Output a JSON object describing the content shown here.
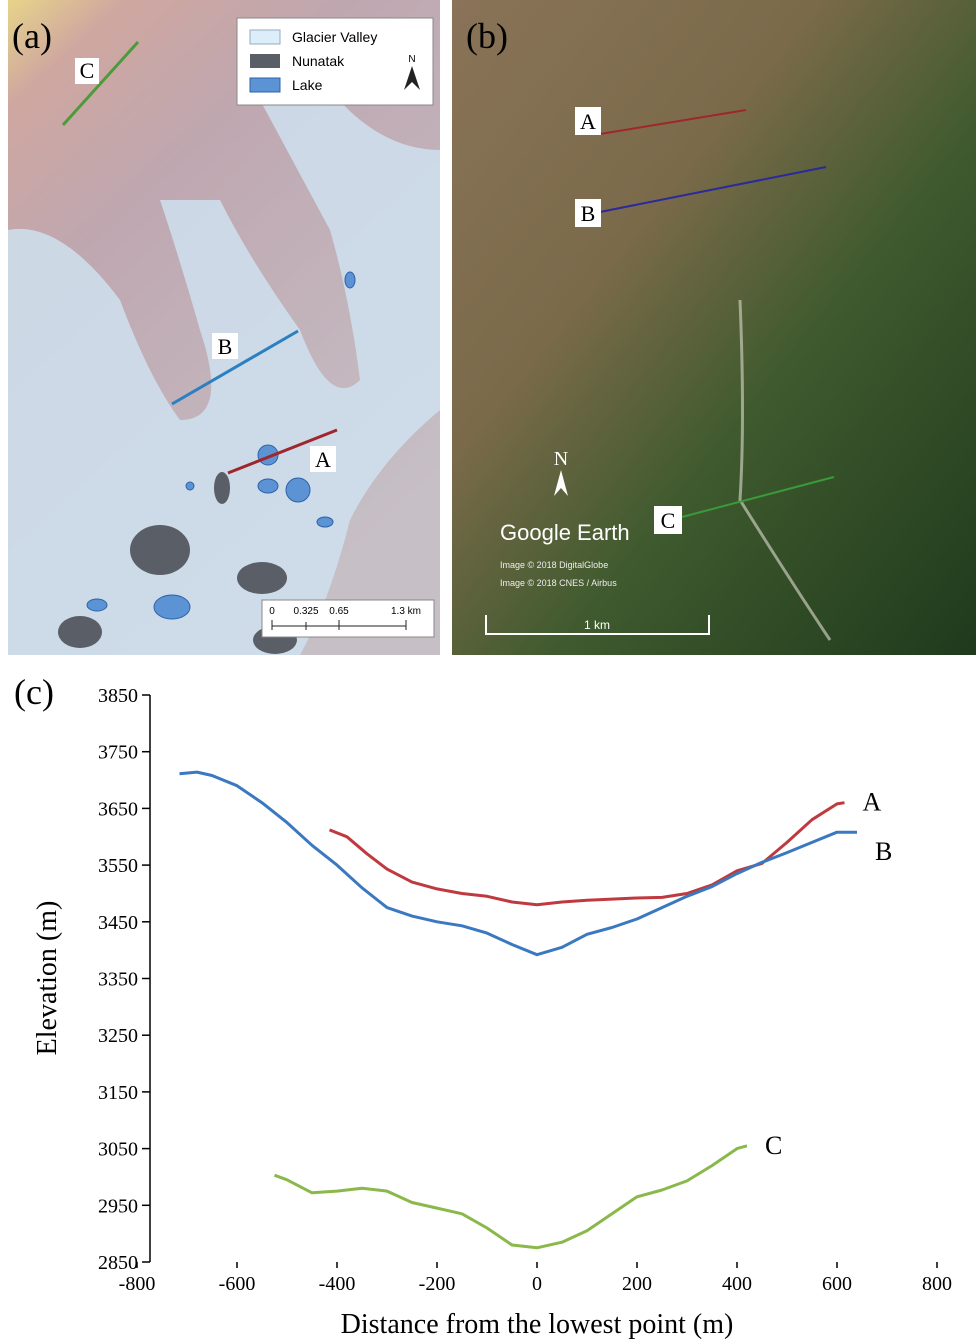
{
  "panel_a": {
    "label": "(a)",
    "legend": [
      "Glacier Valley",
      "Nunatak",
      "Lake"
    ],
    "north": "N",
    "profiles": [
      "A",
      "B",
      "C"
    ],
    "scale": [
      "0",
      "0.325",
      "0.65",
      "1.3 km"
    ]
  },
  "panel_b": {
    "label": "(b)",
    "profiles": [
      "A",
      "B",
      "C"
    ],
    "north": "N",
    "brand": "Google Earth",
    "credits": [
      "Image © 2018 DigitalGlobe",
      "Image © 2018 CNES / Airbus"
    ],
    "scale": "1 km"
  },
  "chart_data": {
    "type": "line",
    "panel_label": "(c)",
    "x_label": "Distance from the lowest point (m)",
    "y_label": "Elevation (m)",
    "xlim": [
      -800,
      800
    ],
    "xticks": [
      -800,
      -600,
      -400,
      -200,
      0,
      200,
      400,
      600,
      800
    ],
    "ylim": [
      2850,
      3850
    ],
    "yticks": [
      2850,
      2950,
      3050,
      3150,
      3250,
      3350,
      3450,
      3550,
      3650,
      3750,
      3850
    ],
    "series": [
      {
        "name": "A",
        "color": "#c0393f",
        "x": [
          -415,
          -380,
          -340,
          -300,
          -250,
          -200,
          -150,
          -100,
          -50,
          0,
          50,
          100,
          150,
          200,
          250,
          300,
          350,
          400,
          450,
          500,
          550,
          600,
          615
        ],
        "values": [
          3612,
          3600,
          3570,
          3543,
          3520,
          3508,
          3500,
          3495,
          3485,
          3480,
          3485,
          3488,
          3490,
          3492,
          3493,
          3500,
          3515,
          3540,
          3553,
          3590,
          3630,
          3658,
          3660
        ]
      },
      {
        "name": "B",
        "color": "#3a78c0",
        "x": [
          -715,
          -680,
          -650,
          -600,
          -550,
          -500,
          -450,
          -400,
          -350,
          -300,
          -250,
          -200,
          -150,
          -100,
          -50,
          0,
          50,
          100,
          150,
          200,
          250,
          300,
          350,
          400,
          450,
          500,
          550,
          600,
          640
        ],
        "values": [
          3711,
          3714,
          3708,
          3690,
          3660,
          3625,
          3585,
          3550,
          3510,
          3475,
          3460,
          3450,
          3443,
          3430,
          3410,
          3392,
          3405,
          3428,
          3440,
          3455,
          3475,
          3495,
          3512,
          3535,
          3555,
          3572,
          3590,
          3608,
          3608
        ]
      },
      {
        "name": "C",
        "color": "#8ab84a",
        "x": [
          -525,
          -500,
          -450,
          -400,
          -350,
          -300,
          -250,
          -200,
          -150,
          -100,
          -50,
          0,
          50,
          100,
          150,
          200,
          250,
          300,
          350,
          400,
          420
        ],
        "values": [
          3003,
          2995,
          2972,
          2975,
          2980,
          2975,
          2955,
          2945,
          2935,
          2910,
          2880,
          2875,
          2885,
          2905,
          2935,
          2965,
          2977,
          2993,
          3020,
          3050,
          3055
        ]
      }
    ]
  }
}
